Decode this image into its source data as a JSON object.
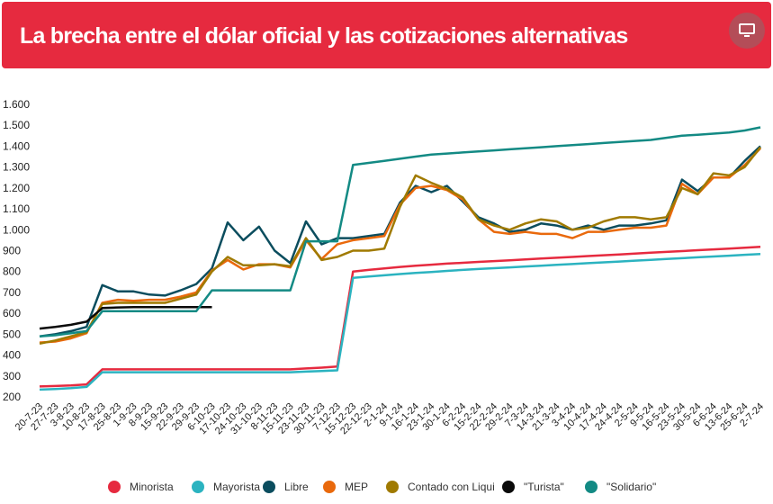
{
  "header": {
    "title": "La brecha entre el dólar oficial y las cotizaciones alternativas"
  },
  "icons": {
    "menu": "monitor-icon"
  },
  "chart_data": {
    "type": "line",
    "title": "La brecha entre el dólar oficial y las cotizaciones alternativas",
    "xlabel": "",
    "ylabel": "",
    "ylim": [
      200,
      1600
    ],
    "grid": false,
    "legend_position": "bottom",
    "y_ticks": [
      "1.600",
      "1.500",
      "1.400",
      "1.300",
      "1.200",
      "1.100",
      "1.000",
      "900",
      "800",
      "700",
      "600",
      "500",
      "400",
      "300",
      "200"
    ],
    "x_labels": [
      "20-7-23",
      "27-7-23",
      "3-8-23",
      "10-8-23",
      "17-8-23",
      "25-8-23",
      "1-9-23",
      "8-9-23",
      "15-9-23",
      "22-9-23",
      "29-9-23",
      "6-10-23",
      "17-10-23",
      "24-10-23",
      "31-10-23",
      "8-11-23",
      "15-11-23",
      "23-11-23",
      "30-11-23",
      "7-12-23",
      "15-12-23",
      "22-12-23",
      "2-1-24",
      "9-1-24",
      "16-1-24",
      "23-1-24",
      "30-1-24",
      "6-2-24",
      "15-2-24",
      "22-2-24",
      "29-2-24",
      "7-3-24",
      "14-3-24",
      "21-3-24",
      "3-4-24",
      "10-4-24",
      "17-4-24",
      "24-4-24",
      "2-5-24",
      "9-5-24",
      "16-5-24",
      "23-5-24",
      "30-5-24",
      "6-6-24",
      "13-6-24",
      "25-6-24",
      "2-7-24"
    ],
    "series": [
      {
        "name": "Minorista",
        "color": "#e62a3f",
        "values": [
          250,
          252,
          255,
          260,
          332,
          332,
          332,
          332,
          332,
          332,
          332,
          332,
          332,
          332,
          332,
          332,
          332,
          336,
          340,
          345,
          800,
          808,
          815,
          822,
          828,
          833,
          838,
          842,
          846,
          850,
          854,
          858,
          862,
          866,
          870,
          874,
          878,
          882,
          886,
          890,
          894,
          898,
          902,
          906,
          910,
          914,
          918
        ]
      },
      {
        "name": "Mayorista",
        "color": "#2bb3c0",
        "values": [
          235,
          238,
          242,
          248,
          318,
          318,
          318,
          318,
          318,
          318,
          318,
          318,
          318,
          318,
          318,
          318,
          318,
          321,
          324,
          327,
          770,
          776,
          782,
          788,
          793,
          798,
          803,
          808,
          812,
          816,
          820,
          824,
          828,
          832,
          836,
          840,
          844,
          848,
          852,
          856,
          860,
          864,
          868,
          872,
          876,
          880,
          884
        ]
      },
      {
        "name": "Libre",
        "color": "#0b4d5e",
        "values": [
          490,
          500,
          515,
          535,
          735,
          705,
          705,
          690,
          685,
          710,
          740,
          815,
          1035,
          950,
          1015,
          900,
          840,
          1040,
          930,
          960,
          960,
          970,
          980,
          1130,
          1210,
          1180,
          1210,
          1135,
          1060,
          1030,
          990,
          1000,
          1030,
          1020,
          1000,
          1020,
          1000,
          1020,
          1020,
          1030,
          1045,
          1240,
          1185,
          1250,
          1250,
          1330,
          1400
        ]
      },
      {
        "name": "MEP",
        "color": "#e9690c",
        "values": [
          460,
          465,
          480,
          505,
          650,
          665,
          660,
          665,
          665,
          680,
          700,
          805,
          855,
          810,
          835,
          835,
          820,
          950,
          860,
          930,
          950,
          960,
          970,
          1120,
          1200,
          1210,
          1190,
          1145,
          1050,
          990,
          980,
          990,
          980,
          980,
          960,
          990,
          990,
          1000,
          1010,
          1010,
          1020,
          1220,
          1170,
          1250,
          1250,
          1310,
          1390
        ]
      },
      {
        "name": "Contado con Liqui",
        "color": "#a07a00",
        "values": [
          455,
          470,
          490,
          510,
          645,
          650,
          650,
          650,
          650,
          670,
          690,
          800,
          870,
          830,
          830,
          835,
          825,
          960,
          855,
          870,
          900,
          900,
          910,
          1110,
          1260,
          1225,
          1195,
          1155,
          1050,
          1020,
          1000,
          1030,
          1050,
          1040,
          1000,
          1010,
          1040,
          1060,
          1060,
          1050,
          1060,
          1200,
          1170,
          1270,
          1260,
          1300,
          1395
        ]
      },
      {
        "name": "\"Turista\"",
        "color": "#0a0a0a",
        "values": [
          527,
          535,
          545,
          560,
          625,
          628,
          630,
          630,
          630,
          630,
          630,
          630
        ]
      },
      {
        "name": "\"Solidario\"",
        "color": "#138a84",
        "values": [
          490,
          495,
          505,
          515,
          610,
          610,
          610,
          610,
          610,
          610,
          610,
          710,
          710,
          710,
          710,
          710,
          710,
          945,
          945,
          945,
          1310,
          1320,
          1330,
          1340,
          1350,
          1360,
          1365,
          1370,
          1375,
          1380,
          1385,
          1390,
          1395,
          1400,
          1405,
          1410,
          1415,
          1420,
          1425,
          1430,
          1440,
          1450,
          1455,
          1460,
          1465,
          1475,
          1490
        ]
      }
    ]
  }
}
